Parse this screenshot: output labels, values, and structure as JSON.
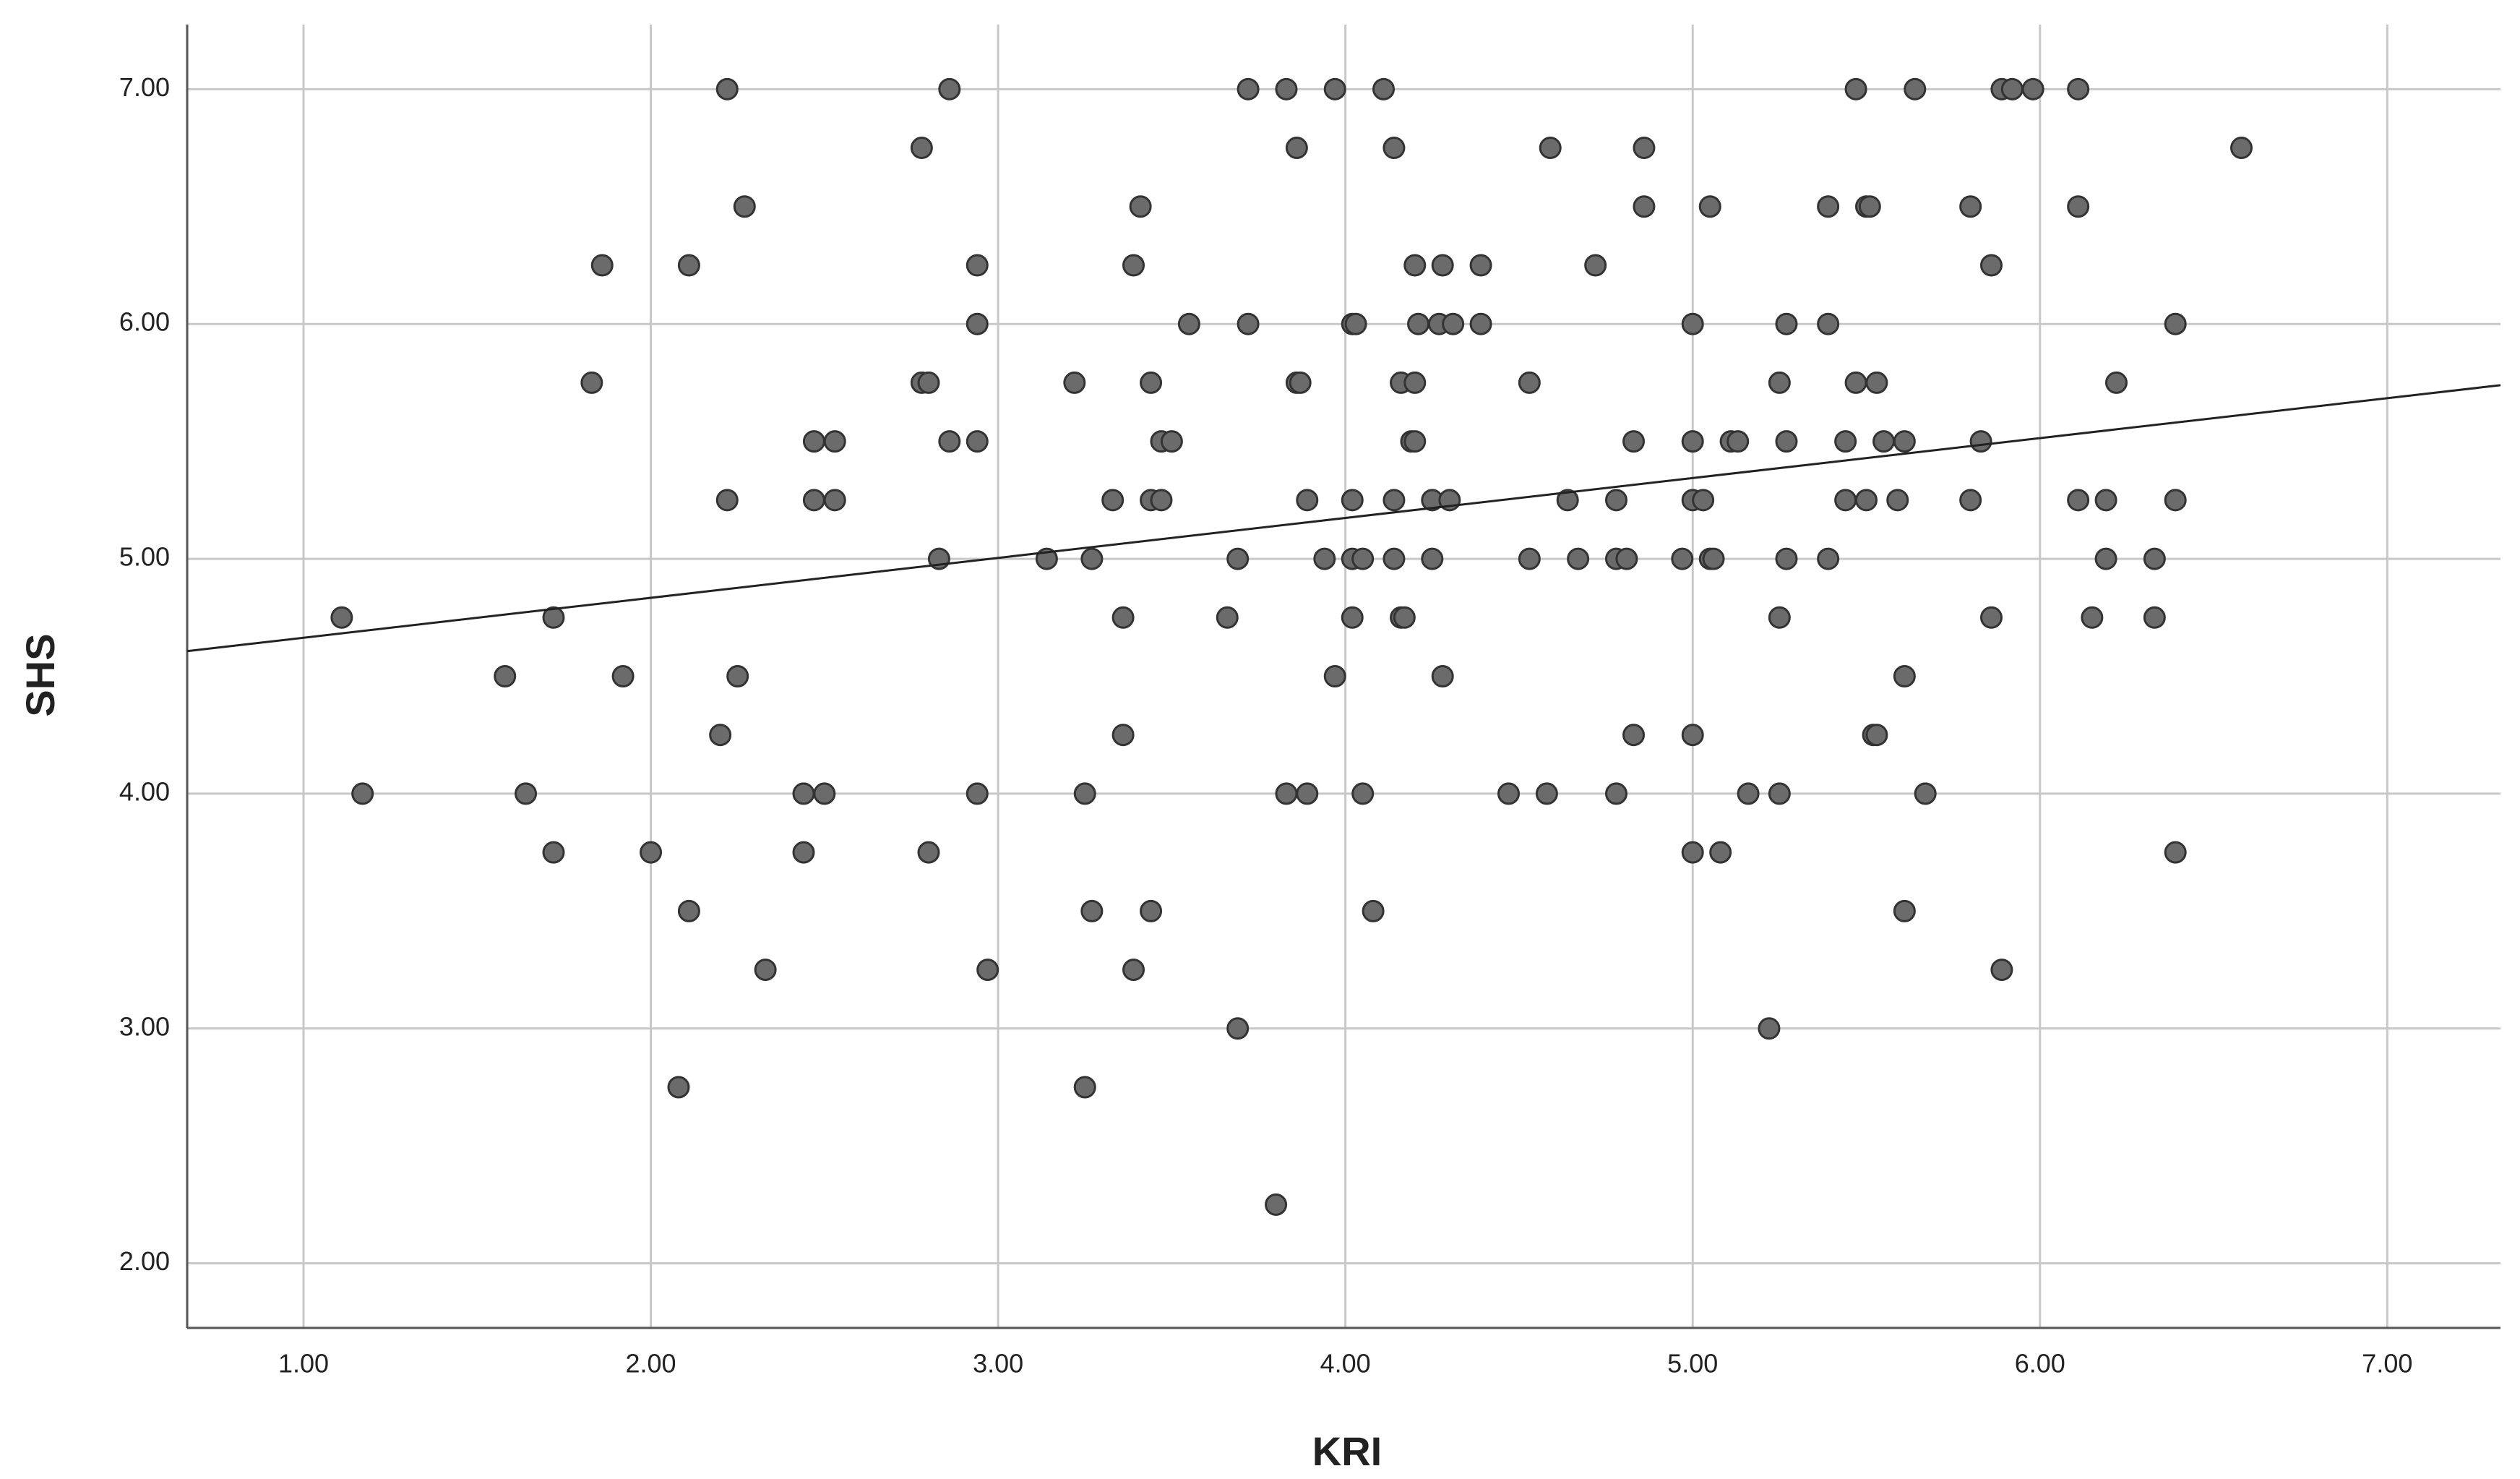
{
  "chart_data": {
    "type": "scatter",
    "x_label": "KRI",
    "y_label": "SHS",
    "xlim": [
      0.665,
      7.326
    ],
    "ylim": [
      1.725,
      7.275
    ],
    "xticks": [
      {
        "value": 1,
        "label": "1.00"
      },
      {
        "value": 2,
        "label": "2.00"
      },
      {
        "value": 3,
        "label": "3.00"
      },
      {
        "value": 4,
        "label": "4.00"
      },
      {
        "value": 5,
        "label": "5.00"
      },
      {
        "value": 6,
        "label": "6.00"
      },
      {
        "value": 7,
        "label": "7.00"
      }
    ],
    "yticks": [
      {
        "value": 2,
        "label": "2.00"
      },
      {
        "value": 3,
        "label": "3.00"
      },
      {
        "value": 4,
        "label": "4.00"
      },
      {
        "value": 5,
        "label": "5.00"
      },
      {
        "value": 6,
        "label": "6.00"
      },
      {
        "value": 7,
        "label": "7.00"
      }
    ],
    "grid": true,
    "color": "#6b6b6b",
    "fit_line": {
      "slope": 0.17,
      "intercept": 4.494
    },
    "x": [
      2.22,
      2.86,
      3.72,
      3.83,
      3.97,
      4.11,
      5.47,
      5.64,
      5.89,
      5.92,
      5.98,
      6.11,
      2.78,
      3.86,
      4.14,
      4.59,
      4.86,
      6.58,
      2.27,
      3.41,
      4.86,
      5.05,
      5.39,
      5.5,
      5.51,
      5.8,
      6.11,
      1.86,
      2.11,
      2.94,
      3.39,
      4.2,
      4.28,
      4.39,
      4.72,
      5.86,
      2.94,
      3.55,
      3.72,
      4.02,
      4.03,
      4.21,
      4.27,
      4.31,
      4.39,
      5.0,
      5.27,
      5.39,
      6.39,
      1.83,
      2.78,
      2.8,
      3.22,
      3.44,
      3.86,
      3.87,
      4.16,
      4.2,
      4.53,
      5.25,
      5.47,
      5.53,
      6.22,
      2.47,
      2.53,
      2.86,
      2.94,
      3.47,
      3.5,
      4.19,
      4.2,
      4.83,
      5.0,
      5.11,
      5.13,
      5.27,
      5.44,
      5.55,
      5.61,
      5.83,
      2.22,
      2.47,
      2.53,
      3.33,
      3.44,
      3.47,
      3.89,
      4.02,
      4.14,
      4.25,
      4.3,
      4.64,
      4.78,
      5.0,
      5.03,
      5.44,
      5.5,
      5.59,
      5.8,
      6.11,
      6.19,
      6.39,
      2.83,
      3.14,
      3.27,
      3.69,
      3.94,
      4.02,
      4.05,
      4.14,
      4.25,
      4.53,
      4.67,
      4.78,
      4.81,
      4.97,
      5.05,
      5.06,
      5.27,
      5.39,
      6.19,
      6.33,
      1.11,
      1.72,
      3.36,
      3.66,
      4.02,
      4.16,
      4.17,
      5.25,
      5.86,
      6.15,
      6.33,
      1.58,
      1.92,
      2.25,
      3.97,
      4.28,
      5.61,
      2.2,
      3.36,
      4.83,
      5.0,
      5.52,
      5.53,
      1.17,
      1.64,
      2.44,
      2.5,
      2.94,
      3.25,
      3.83,
      3.89,
      4.05,
      4.47,
      4.58,
      4.78,
      5.16,
      5.25,
      5.67,
      1.72,
      2.0,
      2.44,
      2.8,
      5.0,
      5.08,
      6.39,
      2.11,
      3.27,
      3.44,
      4.08,
      5.61,
      2.33,
      2.97,
      3.39,
      5.89,
      3.69,
      5.22,
      2.08,
      3.25,
      3.8
    ],
    "y": [
      7,
      7,
      7,
      7,
      7,
      7,
      7,
      7,
      7,
      7,
      7,
      7,
      6.75,
      6.75,
      6.75,
      6.75,
      6.75,
      6.75,
      6.5,
      6.5,
      6.5,
      6.5,
      6.5,
      6.5,
      6.5,
      6.5,
      6.5,
      6.25,
      6.25,
      6.25,
      6.25,
      6.25,
      6.25,
      6.25,
      6.25,
      6.25,
      6,
      6,
      6,
      6,
      6,
      6,
      6,
      6,
      6,
      6,
      6,
      6,
      6,
      5.75,
      5.75,
      5.75,
      5.75,
      5.75,
      5.75,
      5.75,
      5.75,
      5.75,
      5.75,
      5.75,
      5.75,
      5.75,
      5.75,
      5.5,
      5.5,
      5.5,
      5.5,
      5.5,
      5.5,
      5.5,
      5.5,
      5.5,
      5.5,
      5.5,
      5.5,
      5.5,
      5.5,
      5.5,
      5.5,
      5.5,
      5.25,
      5.25,
      5.25,
      5.25,
      5.25,
      5.25,
      5.25,
      5.25,
      5.25,
      5.25,
      5.25,
      5.25,
      5.25,
      5.25,
      5.25,
      5.25,
      5.25,
      5.25,
      5.25,
      5.25,
      5.25,
      5.25,
      5,
      5,
      5,
      5,
      5,
      5,
      5,
      5,
      5,
      5,
      5,
      5,
      5,
      5,
      5,
      5,
      5,
      5,
      5,
      5,
      4.75,
      4.75,
      4.75,
      4.75,
      4.75,
      4.75,
      4.75,
      4.75,
      4.75,
      4.75,
      4.75,
      4.5,
      4.5,
      4.5,
      4.5,
      4.5,
      4.5,
      4.25,
      4.25,
      4.25,
      4.25,
      4.25,
      4.25,
      4,
      4,
      4,
      4,
      4,
      4,
      4,
      4,
      4,
      4,
      4,
      4,
      4,
      4,
      4,
      3.75,
      3.75,
      3.75,
      3.75,
      3.75,
      3.75,
      3.75,
      3.5,
      3.5,
      3.5,
      3.5,
      3.5,
      3.25,
      3.25,
      3.25,
      3.25,
      3,
      3,
      2.75,
      2.75,
      2.25
    ]
  }
}
